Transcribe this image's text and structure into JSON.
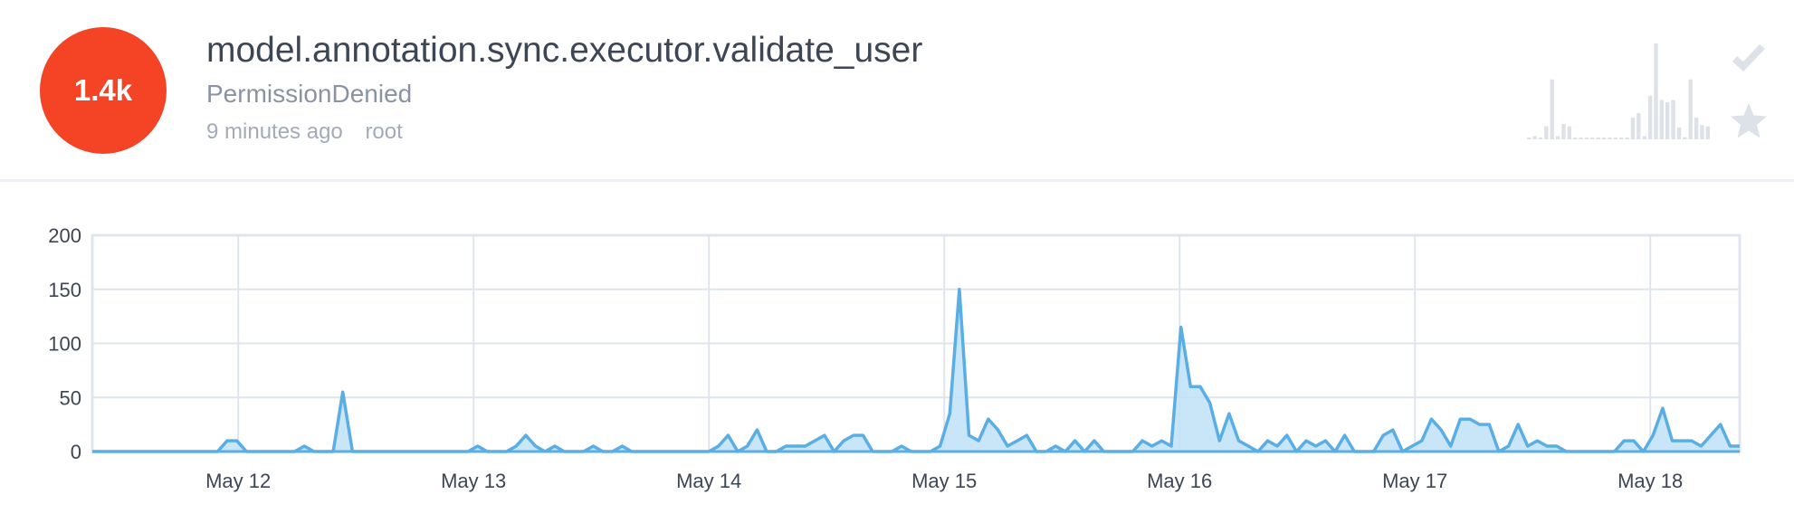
{
  "issue": {
    "count": "1.4k",
    "title": "model.annotation.sync.executor.validate_user",
    "subtitle": "PermissionDenied",
    "time_ago": "9 minutes ago",
    "user": "root"
  },
  "actions": [
    {
      "name": "resolve",
      "icon": "checkmark-icon"
    },
    {
      "name": "bookmark",
      "icon": "star-icon"
    }
  ],
  "colors": {
    "badge": "#f54326",
    "line": "#5aaee6",
    "fill": "#bfe0f7",
    "grid": "#dfe5ee",
    "muted": "#dde1e8"
  },
  "sparkline_values": [
    1,
    3,
    1,
    12,
    55,
    3,
    14,
    12,
    1,
    1,
    1,
    1,
    1,
    1,
    1,
    1,
    1,
    1,
    20,
    24,
    3,
    40,
    88,
    36,
    34,
    36,
    11,
    2,
    55,
    20,
    13,
    12
  ],
  "chart_data": {
    "type": "area",
    "xlabel": "",
    "ylabel": "",
    "ylim": [
      0,
      200
    ],
    "yticks": [
      "0",
      "50",
      "100",
      "150",
      "200"
    ],
    "xticks": [
      "May 12",
      "May 13",
      "May 14",
      "May 15",
      "May 16",
      "May 17",
      "May 18"
    ],
    "grid": true,
    "series": [
      {
        "values": [
          0,
          0,
          0,
          0,
          0,
          0,
          0,
          0,
          0,
          0,
          0,
          0,
          0,
          0,
          10,
          10,
          0,
          0,
          0,
          0,
          0,
          0,
          5,
          0,
          0,
          0,
          55,
          0,
          0,
          0,
          0,
          0,
          0,
          0,
          0,
          0,
          0,
          0,
          0,
          0,
          5,
          0,
          0,
          0,
          5,
          15,
          5,
          0,
          5,
          0,
          0,
          0,
          5,
          0,
          0,
          5,
          0,
          0,
          0,
          0,
          0,
          0,
          0,
          0,
          0,
          5,
          15,
          0,
          5,
          20,
          0,
          0,
          5,
          5,
          5,
          10,
          15,
          0,
          10,
          15,
          15,
          0,
          0,
          0,
          5,
          0,
          0,
          0,
          5,
          35,
          150,
          15,
          10,
          30,
          20,
          5,
          10,
          15,
          0,
          0,
          5,
          0,
          10,
          0,
          10,
          0,
          0,
          0,
          0,
          10,
          5,
          10,
          5,
          115,
          60,
          60,
          45,
          10,
          35,
          10,
          5,
          0,
          10,
          5,
          15,
          0,
          10,
          5,
          10,
          0,
          15,
          0,
          0,
          0,
          15,
          20,
          0,
          5,
          10,
          30,
          20,
          5,
          30,
          30,
          25,
          25,
          0,
          5,
          25,
          5,
          10,
          5,
          5,
          0,
          0,
          0,
          0,
          0,
          0,
          10,
          10,
          0,
          15,
          40,
          10,
          10,
          10,
          5,
          15,
          25,
          5,
          5
        ]
      }
    ]
  }
}
